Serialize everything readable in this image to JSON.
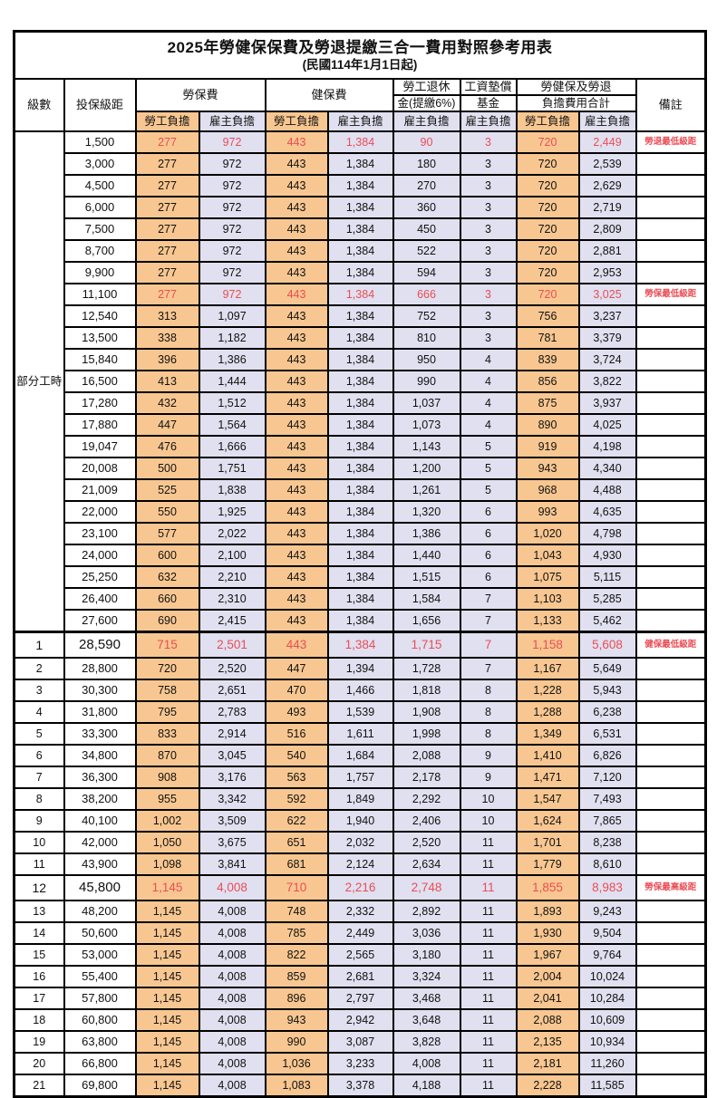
{
  "title": "2025年勞健保保費及勞退提繳三合一費用對照參考用表",
  "subtitle": "(民國114年1月1日起)",
  "header": {
    "level": "級數",
    "bracket": "投保級距",
    "labor_ins": "勞保費",
    "health_ins": "健保費",
    "pension_line1": "勞工退休",
    "pension_line2": "金(提繳6%)",
    "wage_fund_line1": "工資墊償",
    "wage_fund_line2": "基金",
    "total_line1": "勞健保及勞退",
    "total_line2": "負擔費用合計",
    "remark": "備註",
    "employee_label": "勞工負擔",
    "employer_label": "雇主負擔"
  },
  "part_time_label": "部分工時",
  "part_time_rowspan": 23,
  "colors": {
    "employee_bg": "#f8c791",
    "employer_bg": "#e0e0f0",
    "highlight_text": "#eb4d55",
    "border": "#000000"
  },
  "rows": [
    {
      "level": "",
      "bracket": "1,500",
      "v": [
        "277",
        "972",
        "443",
        "1,384",
        "90",
        "3",
        "720",
        "2,449"
      ],
      "remark": "勞退最低級距",
      "hl": true,
      "big": false
    },
    {
      "level": "",
      "bracket": "3,000",
      "v": [
        "277",
        "972",
        "443",
        "1,384",
        "180",
        "3",
        "720",
        "2,539"
      ],
      "remark": "",
      "hl": false,
      "big": false
    },
    {
      "level": "",
      "bracket": "4,500",
      "v": [
        "277",
        "972",
        "443",
        "1,384",
        "270",
        "3",
        "720",
        "2,629"
      ],
      "remark": "",
      "hl": false,
      "big": false
    },
    {
      "level": "",
      "bracket": "6,000",
      "v": [
        "277",
        "972",
        "443",
        "1,384",
        "360",
        "3",
        "720",
        "2,719"
      ],
      "remark": "",
      "hl": false,
      "big": false
    },
    {
      "level": "",
      "bracket": "7,500",
      "v": [
        "277",
        "972",
        "443",
        "1,384",
        "450",
        "3",
        "720",
        "2,809"
      ],
      "remark": "",
      "hl": false,
      "big": false
    },
    {
      "level": "",
      "bracket": "8,700",
      "v": [
        "277",
        "972",
        "443",
        "1,384",
        "522",
        "3",
        "720",
        "2,881"
      ],
      "remark": "",
      "hl": false,
      "big": false
    },
    {
      "level": "",
      "bracket": "9,900",
      "v": [
        "277",
        "972",
        "443",
        "1,384",
        "594",
        "3",
        "720",
        "2,953"
      ],
      "remark": "",
      "hl": false,
      "big": false
    },
    {
      "level": "",
      "bracket": "11,100",
      "v": [
        "277",
        "972",
        "443",
        "1,384",
        "666",
        "3",
        "720",
        "3,025"
      ],
      "remark": "勞保最低級距",
      "hl": true,
      "big": false
    },
    {
      "level": "",
      "bracket": "12,540",
      "v": [
        "313",
        "1,097",
        "443",
        "1,384",
        "752",
        "3",
        "756",
        "3,237"
      ],
      "remark": "",
      "hl": false,
      "big": false
    },
    {
      "level": "",
      "bracket": "13,500",
      "v": [
        "338",
        "1,182",
        "443",
        "1,384",
        "810",
        "3",
        "781",
        "3,379"
      ],
      "remark": "",
      "hl": false,
      "big": false
    },
    {
      "level": "",
      "bracket": "15,840",
      "v": [
        "396",
        "1,386",
        "443",
        "1,384",
        "950",
        "4",
        "839",
        "3,724"
      ],
      "remark": "",
      "hl": false,
      "big": false
    },
    {
      "level": "",
      "bracket": "16,500",
      "v": [
        "413",
        "1,444",
        "443",
        "1,384",
        "990",
        "4",
        "856",
        "3,822"
      ],
      "remark": "",
      "hl": false,
      "big": false
    },
    {
      "level": "",
      "bracket": "17,280",
      "v": [
        "432",
        "1,512",
        "443",
        "1,384",
        "1,037",
        "4",
        "875",
        "3,937"
      ],
      "remark": "",
      "hl": false,
      "big": false
    },
    {
      "level": "",
      "bracket": "17,880",
      "v": [
        "447",
        "1,564",
        "443",
        "1,384",
        "1,073",
        "4",
        "890",
        "4,025"
      ],
      "remark": "",
      "hl": false,
      "big": false
    },
    {
      "level": "",
      "bracket": "19,047",
      "v": [
        "476",
        "1,666",
        "443",
        "1,384",
        "1,143",
        "5",
        "919",
        "4,198"
      ],
      "remark": "",
      "hl": false,
      "big": false
    },
    {
      "level": "",
      "bracket": "20,008",
      "v": [
        "500",
        "1,751",
        "443",
        "1,384",
        "1,200",
        "5",
        "943",
        "4,340"
      ],
      "remark": "",
      "hl": false,
      "big": false
    },
    {
      "level": "",
      "bracket": "21,009",
      "v": [
        "525",
        "1,838",
        "443",
        "1,384",
        "1,261",
        "5",
        "968",
        "4,488"
      ],
      "remark": "",
      "hl": false,
      "big": false
    },
    {
      "level": "",
      "bracket": "22,000",
      "v": [
        "550",
        "1,925",
        "443",
        "1,384",
        "1,320",
        "6",
        "993",
        "4,635"
      ],
      "remark": "",
      "hl": false,
      "big": false
    },
    {
      "level": "",
      "bracket": "23,100",
      "v": [
        "577",
        "2,022",
        "443",
        "1,384",
        "1,386",
        "6",
        "1,020",
        "4,798"
      ],
      "remark": "",
      "hl": false,
      "big": false
    },
    {
      "level": "",
      "bracket": "24,000",
      "v": [
        "600",
        "2,100",
        "443",
        "1,384",
        "1,440",
        "6",
        "1,043",
        "4,930"
      ],
      "remark": "",
      "hl": false,
      "big": false
    },
    {
      "level": "",
      "bracket": "25,250",
      "v": [
        "632",
        "2,210",
        "443",
        "1,384",
        "1,515",
        "6",
        "1,075",
        "5,115"
      ],
      "remark": "",
      "hl": false,
      "big": false
    },
    {
      "level": "",
      "bracket": "26,400",
      "v": [
        "660",
        "2,310",
        "443",
        "1,384",
        "1,584",
        "7",
        "1,103",
        "5,285"
      ],
      "remark": "",
      "hl": false,
      "big": false
    },
    {
      "level": "",
      "bracket": "27,600",
      "v": [
        "690",
        "2,415",
        "443",
        "1,384",
        "1,656",
        "7",
        "1,133",
        "5,462"
      ],
      "remark": "",
      "hl": false,
      "big": false
    },
    {
      "level": "1",
      "bracket": "28,590",
      "v": [
        "715",
        "2,501",
        "443",
        "1,384",
        "1,715",
        "7",
        "1,158",
        "5,608"
      ],
      "remark": "健保最低級距",
      "hl": true,
      "big": true
    },
    {
      "level": "2",
      "bracket": "28,800",
      "v": [
        "720",
        "2,520",
        "447",
        "1,394",
        "1,728",
        "7",
        "1,167",
        "5,649"
      ],
      "remark": "",
      "hl": false,
      "big": false
    },
    {
      "level": "3",
      "bracket": "30,300",
      "v": [
        "758",
        "2,651",
        "470",
        "1,466",
        "1,818",
        "8",
        "1,228",
        "5,943"
      ],
      "remark": "",
      "hl": false,
      "big": false
    },
    {
      "level": "4",
      "bracket": "31,800",
      "v": [
        "795",
        "2,783",
        "493",
        "1,539",
        "1,908",
        "8",
        "1,288",
        "6,238"
      ],
      "remark": "",
      "hl": false,
      "big": false
    },
    {
      "level": "5",
      "bracket": "33,300",
      "v": [
        "833",
        "2,914",
        "516",
        "1,611",
        "1,998",
        "8",
        "1,349",
        "6,531"
      ],
      "remark": "",
      "hl": false,
      "big": false
    },
    {
      "level": "6",
      "bracket": "34,800",
      "v": [
        "870",
        "3,045",
        "540",
        "1,684",
        "2,088",
        "9",
        "1,410",
        "6,826"
      ],
      "remark": "",
      "hl": false,
      "big": false
    },
    {
      "level": "7",
      "bracket": "36,300",
      "v": [
        "908",
        "3,176",
        "563",
        "1,757",
        "2,178",
        "9",
        "1,471",
        "7,120"
      ],
      "remark": "",
      "hl": false,
      "big": false
    },
    {
      "level": "8",
      "bracket": "38,200",
      "v": [
        "955",
        "3,342",
        "592",
        "1,849",
        "2,292",
        "10",
        "1,547",
        "7,493"
      ],
      "remark": "",
      "hl": false,
      "big": false
    },
    {
      "level": "9",
      "bracket": "40,100",
      "v": [
        "1,002",
        "3,509",
        "622",
        "1,940",
        "2,406",
        "10",
        "1,624",
        "7,865"
      ],
      "remark": "",
      "hl": false,
      "big": false
    },
    {
      "level": "10",
      "bracket": "42,000",
      "v": [
        "1,050",
        "3,675",
        "651",
        "2,032",
        "2,520",
        "11",
        "1,701",
        "8,238"
      ],
      "remark": "",
      "hl": false,
      "big": false
    },
    {
      "level": "11",
      "bracket": "43,900",
      "v": [
        "1,098",
        "3,841",
        "681",
        "2,124",
        "2,634",
        "11",
        "1,779",
        "8,610"
      ],
      "remark": "",
      "hl": false,
      "big": false
    },
    {
      "level": "12",
      "bracket": "45,800",
      "v": [
        "1,145",
        "4,008",
        "710",
        "2,216",
        "2,748",
        "11",
        "1,855",
        "8,983"
      ],
      "remark": "勞保最高級距",
      "hl": true,
      "big": true
    },
    {
      "level": "13",
      "bracket": "48,200",
      "v": [
        "1,145",
        "4,008",
        "748",
        "2,332",
        "2,892",
        "11",
        "1,893",
        "9,243"
      ],
      "remark": "",
      "hl": false,
      "big": false
    },
    {
      "level": "14",
      "bracket": "50,600",
      "v": [
        "1,145",
        "4,008",
        "785",
        "2,449",
        "3,036",
        "11",
        "1,930",
        "9,504"
      ],
      "remark": "",
      "hl": false,
      "big": false
    },
    {
      "level": "15",
      "bracket": "53,000",
      "v": [
        "1,145",
        "4,008",
        "822",
        "2,565",
        "3,180",
        "11",
        "1,967",
        "9,764"
      ],
      "remark": "",
      "hl": false,
      "big": false
    },
    {
      "level": "16",
      "bracket": "55,400",
      "v": [
        "1,145",
        "4,008",
        "859",
        "2,681",
        "3,324",
        "11",
        "2,004",
        "10,024"
      ],
      "remark": "",
      "hl": false,
      "big": false
    },
    {
      "level": "17",
      "bracket": "57,800",
      "v": [
        "1,145",
        "4,008",
        "896",
        "2,797",
        "3,468",
        "11",
        "2,041",
        "10,284"
      ],
      "remark": "",
      "hl": false,
      "big": false
    },
    {
      "level": "18",
      "bracket": "60,800",
      "v": [
        "1,145",
        "4,008",
        "943",
        "2,942",
        "3,648",
        "11",
        "2,088",
        "10,609"
      ],
      "remark": "",
      "hl": false,
      "big": false
    },
    {
      "level": "19",
      "bracket": "63,800",
      "v": [
        "1,145",
        "4,008",
        "990",
        "3,087",
        "3,828",
        "11",
        "2,135",
        "10,934"
      ],
      "remark": "",
      "hl": false,
      "big": false
    },
    {
      "level": "20",
      "bracket": "66,800",
      "v": [
        "1,145",
        "4,008",
        "1,036",
        "3,233",
        "4,008",
        "11",
        "2,181",
        "11,260"
      ],
      "remark": "",
      "hl": false,
      "big": false
    },
    {
      "level": "21",
      "bracket": "69,800",
      "v": [
        "1,145",
        "4,008",
        "1,083",
        "3,378",
        "4,188",
        "11",
        "2,228",
        "11,585"
      ],
      "remark": "",
      "hl": false,
      "big": false
    }
  ]
}
